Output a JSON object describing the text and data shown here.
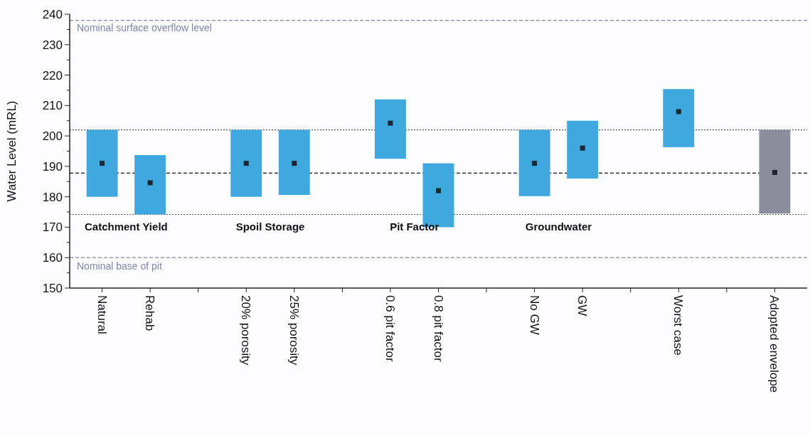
{
  "chart_data": {
    "type": "bar",
    "ylabel": "Water Level (mRL)",
    "categories": [
      "Natural",
      "Rehab",
      null,
      "20% porosity",
      "25% porosity",
      null,
      "0.6 pit factor",
      "0.8 pit factor",
      null,
      "No GW",
      "GW",
      null,
      "Worst case",
      null,
      "Adopted envelope"
    ],
    "series": [
      {
        "type": "bar",
        "colors": [
          "#3fa9df",
          "#3fa9df",
          null,
          "#3fa9df",
          "#3fa9df",
          null,
          "#3fa9df",
          "#3fa9df",
          null,
          "#3fa9df",
          "#3fa9df",
          null,
          "#3fa9df",
          null,
          "#8a8d9c"
        ],
        "base": [
          180,
          174.2,
          null,
          180,
          180.6,
          null,
          192.5,
          170,
          null,
          180.2,
          186,
          null,
          196.3,
          null,
          174.5
        ],
        "values": [
          22,
          19.5,
          null,
          22,
          21.4,
          null,
          19.5,
          21,
          null,
          21.8,
          19,
          null,
          19.1,
          null,
          27.5
        ]
      },
      {
        "type": "scatter",
        "color": "#1b2631",
        "marker": "square",
        "values": [
          191,
          184.6,
          null,
          191,
          191,
          null,
          204.2,
          182,
          null,
          191,
          196,
          null,
          208,
          null,
          188
        ]
      }
    ],
    "ylim": [
      150,
      240
    ],
    "yticks": [
      150,
      {
        "value": 155,
        "label": null
      },
      160,
      {
        "value": 165,
        "label": null
      },
      170,
      {
        "value": 175,
        "label": null
      },
      180,
      {
        "value": 185,
        "label": null
      },
      190,
      {
        "value": 195,
        "label": null
      },
      200,
      {
        "value": 205,
        "label": null
      },
      210,
      {
        "value": 215,
        "label": null
      },
      220,
      {
        "value": 225,
        "label": null
      },
      230,
      {
        "value": 235,
        "label": null
      },
      240
    ],
    "ref_lines": [
      {
        "axis": "y",
        "value": 238,
        "label": "Nominal surface overflow level",
        "color": "#7d86b0",
        "line_style": "dashed"
      },
      {
        "axis": "y",
        "value": 202,
        "label": null,
        "color": "#555555",
        "line_style": "dotted"
      },
      {
        "axis": "y",
        "value": 187.8,
        "label": null,
        "color": "#111111",
        "line_style": "dashed"
      },
      {
        "axis": "y",
        "value": 174.2,
        "label": null,
        "color": "#555555",
        "line_style": "dotted"
      },
      {
        "axis": "y",
        "value": 160,
        "label": "Nominal base of pit",
        "color": "#7d86b0",
        "line_style": "dashed"
      }
    ],
    "annotations": [
      "Catchment Yield",
      "Spoil Storage",
      "Pit Factor",
      "Groundwater"
    ]
  }
}
